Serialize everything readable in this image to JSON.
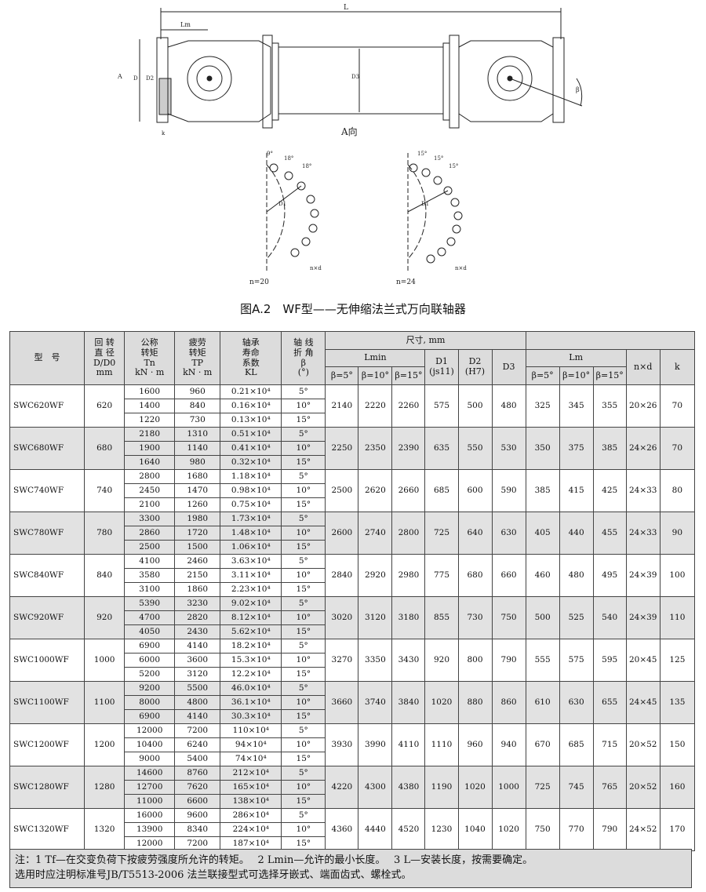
{
  "figure": {
    "dim_L": "L",
    "dim_Lm": "Lm",
    "dim_A": "A",
    "dim_D": "D",
    "dim_D3": "D3",
    "dim_D2": "D2",
    "dim_k": "k",
    "dim_beta": "β",
    "view_label": "A向",
    "left_detail": {
      "n_label": "n=20",
      "angles": [
        "9°",
        "18°",
        "18°"
      ],
      "hole_label": "n×d",
      "dia_label": "D1"
    },
    "right_detail": {
      "n_label": "n=24",
      "angles": [
        "15°",
        "15°",
        "15°"
      ],
      "hole_label": "n×d",
      "dia_label": "D1"
    },
    "caption": "图A.2　WF型——无伸缩法兰式万向联轴器"
  },
  "table": {
    "headers": {
      "model": "型　号",
      "rot_dia": [
        "回 转",
        "直 径",
        "D/D0",
        "mm"
      ],
      "tn": [
        "公称",
        "转矩",
        "Tn",
        "kN · m"
      ],
      "tp": [
        "疲劳",
        "转矩",
        "TP",
        "kN · m"
      ],
      "kl": [
        "轴承",
        "寿命",
        "系数",
        "KL"
      ],
      "beta": [
        "轴 线",
        "折 角",
        "β",
        "(°)"
      ],
      "dims": "尺寸, mm",
      "lmin": "Lmin",
      "d1": [
        "D1",
        "(js11)"
      ],
      "d2": [
        "D2",
        "(H7)"
      ],
      "d3": "D3",
      "b5": "β=5°",
      "b10": "β=10°",
      "b15": "β=15°",
      "lm": "Lm",
      "nxd": "n×d",
      "k": "k"
    },
    "rows": [
      {
        "model": "SWC620WF",
        "d": "620",
        "tn": [
          "1600",
          "1400",
          "1220"
        ],
        "tp": [
          "960",
          "840",
          "730"
        ],
        "kl": [
          "0.21×10⁴",
          "0.16×10⁴",
          "0.13×10⁴"
        ],
        "lmin": [
          "2140",
          "2220",
          "2260"
        ],
        "d1": "575",
        "d2": "500",
        "d3": "480",
        "lm": [
          "325",
          "345",
          "355"
        ],
        "nxd": "20×26",
        "k": "70"
      },
      {
        "model": "SWC680WF",
        "d": "680",
        "tn": [
          "2180",
          "1900",
          "1640"
        ],
        "tp": [
          "1310",
          "1140",
          "980"
        ],
        "kl": [
          "0.51×10⁴",
          "0.41×10⁴",
          "0.32×10⁴"
        ],
        "lmin": [
          "2250",
          "2350",
          "2390"
        ],
        "d1": "635",
        "d2": "550",
        "d3": "530",
        "lm": [
          "350",
          "375",
          "385"
        ],
        "nxd": "24×26",
        "k": "70"
      },
      {
        "model": "SWC740WF",
        "d": "740",
        "tn": [
          "2800",
          "2450",
          "2100"
        ],
        "tp": [
          "1680",
          "1470",
          "1260"
        ],
        "kl": [
          "1.18×10⁴",
          "0.98×10⁴",
          "0.75×10⁴"
        ],
        "lmin": [
          "2500",
          "2620",
          "2660"
        ],
        "d1": "685",
        "d2": "600",
        "d3": "590",
        "lm": [
          "385",
          "415",
          "425"
        ],
        "nxd": "24×33",
        "k": "80"
      },
      {
        "model": "SWC780WF",
        "d": "780",
        "tn": [
          "3300",
          "2860",
          "2500"
        ],
        "tp": [
          "1980",
          "1720",
          "1500"
        ],
        "kl": [
          "1.73×10⁴",
          "1.48×10⁴",
          "1.06×10⁴"
        ],
        "lmin": [
          "2600",
          "2740",
          "2800"
        ],
        "d1": "725",
        "d2": "640",
        "d3": "630",
        "lm": [
          "405",
          "440",
          "455"
        ],
        "nxd": "24×33",
        "k": "90"
      },
      {
        "model": "SWC840WF",
        "d": "840",
        "tn": [
          "4100",
          "3580",
          "3100"
        ],
        "tp": [
          "2460",
          "2150",
          "1860"
        ],
        "kl": [
          "3.63×10⁴",
          "3.11×10⁴",
          "2.23×10⁴"
        ],
        "lmin": [
          "2840",
          "2920",
          "2980"
        ],
        "d1": "775",
        "d2": "680",
        "d3": "660",
        "lm": [
          "460",
          "480",
          "495"
        ],
        "nxd": "24×39",
        "k": "100"
      },
      {
        "model": "SWC920WF",
        "d": "920",
        "tn": [
          "5390",
          "4700",
          "4050"
        ],
        "tp": [
          "3230",
          "2820",
          "2430"
        ],
        "kl": [
          "9.02×10⁴",
          "8.12×10⁴",
          "5.62×10⁴"
        ],
        "lmin": [
          "3020",
          "3120",
          "3180"
        ],
        "d1": "855",
        "d2": "730",
        "d3": "750",
        "lm": [
          "500",
          "525",
          "540"
        ],
        "nxd": "24×39",
        "k": "110"
      },
      {
        "model": "SWC1000WF",
        "d": "1000",
        "tn": [
          "6900",
          "6000",
          "5200"
        ],
        "tp": [
          "4140",
          "3600",
          "3120"
        ],
        "kl": [
          "18.2×10⁴",
          "15.3×10⁴",
          "12.2×10⁴"
        ],
        "lmin": [
          "3270",
          "3350",
          "3430"
        ],
        "d1": "920",
        "d2": "800",
        "d3": "790",
        "lm": [
          "555",
          "575",
          "595"
        ],
        "nxd": "20×45",
        "k": "125"
      },
      {
        "model": "SWC1100WF",
        "d": "1100",
        "tn": [
          "9200",
          "8000",
          "6900"
        ],
        "tp": [
          "5500",
          "4800",
          "4140"
        ],
        "kl": [
          "46.0×10⁴",
          "36.1×10⁴",
          "30.3×10⁴"
        ],
        "lmin": [
          "3660",
          "3740",
          "3840"
        ],
        "d1": "1020",
        "d2": "880",
        "d3": "860",
        "lm": [
          "610",
          "630",
          "655"
        ],
        "nxd": "24×45",
        "k": "135"
      },
      {
        "model": "SWC1200WF",
        "d": "1200",
        "tn": [
          "12000",
          "10400",
          "9000"
        ],
        "tp": [
          "7200",
          "6240",
          "5400"
        ],
        "kl": [
          "110×10⁴",
          "94×10⁴",
          "74×10⁴"
        ],
        "lmin": [
          "3930",
          "3990",
          "4110"
        ],
        "d1": "1110",
        "d2": "960",
        "d3": "940",
        "lm": [
          "670",
          "685",
          "715"
        ],
        "nxd": "20×52",
        "k": "150"
      },
      {
        "model": "SWC1280WF",
        "d": "1280",
        "tn": [
          "14600",
          "12700",
          "11000"
        ],
        "tp": [
          "8760",
          "7620",
          "6600"
        ],
        "kl": [
          "212×10⁴",
          "165×10⁴",
          "138×10⁴"
        ],
        "lmin": [
          "4220",
          "4300",
          "4380"
        ],
        "d1": "1190",
        "d2": "1020",
        "d3": "1000",
        "lm": [
          "725",
          "745",
          "765"
        ],
        "nxd": "20×52",
        "k": "160"
      },
      {
        "model": "SWC1320WF",
        "d": "1320",
        "tn": [
          "16000",
          "13900",
          "12000"
        ],
        "tp": [
          "9600",
          "8340",
          "7200"
        ],
        "kl": [
          "286×10⁴",
          "224×10⁴",
          "187×10⁴"
        ],
        "lmin": [
          "4360",
          "4440",
          "4520"
        ],
        "d1": "1230",
        "d2": "1040",
        "d3": "1020",
        "lm": [
          "750",
          "770",
          "790"
        ],
        "nxd": "24×52",
        "k": "170"
      }
    ],
    "betas": [
      "5°",
      "10°",
      "15°"
    ]
  },
  "notes": {
    "line1": "注：1 Tf—在交变负荷下按疲劳强度所允许的转矩。　 2 Lmin—允许的最小长度。　 3 L—安装长度，按需要确定。",
    "line2": "选用时应注明标准号JB/T5513-2006 法兰联接型式可选择牙嵌式、端面齿式、螺栓式。"
  },
  "colors": {
    "header_bg": "#dcdcdc",
    "alt_row_bg": "#e2e2e2"
  }
}
